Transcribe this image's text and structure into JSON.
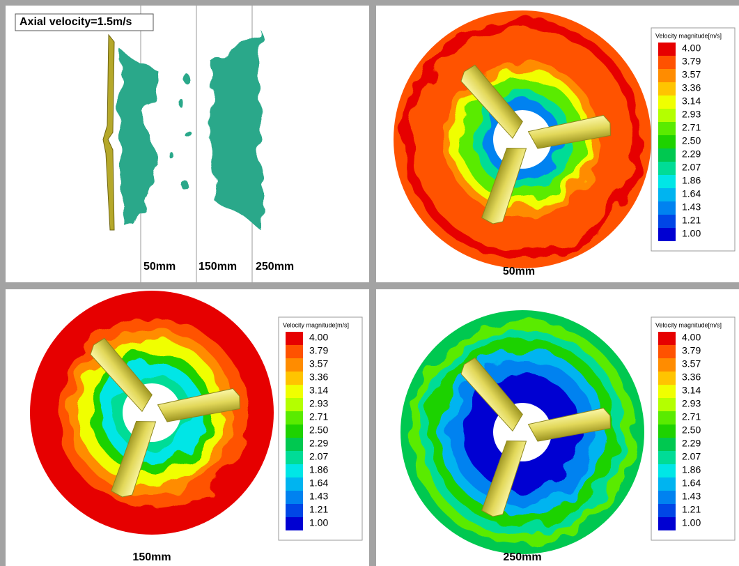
{
  "panels": [
    {
      "title": "Axial velocity=1.5m/s",
      "planes": [
        "50mm",
        "150mm",
        "250mm"
      ]
    },
    {
      "caption": "50mm",
      "legend": {
        "title": "Velocity magnitude[m/s]",
        "levels": [
          "4.00",
          "3.79",
          "3.57",
          "3.36",
          "3.14",
          "2.93",
          "2.71",
          "2.50",
          "2.29",
          "2.07",
          "1.86",
          "1.64",
          "1.43",
          "1.21",
          "1.00"
        ]
      }
    },
    {
      "caption": "150mm",
      "legend": {
        "title": "Velocity magnitude[m/s]",
        "levels": [
          "4.00",
          "3.79",
          "3.57",
          "3.36",
          "3.14",
          "2.93",
          "2.71",
          "2.50",
          "2.29",
          "2.07",
          "1.86",
          "1.64",
          "1.43",
          "1.21",
          "1.00"
        ]
      }
    },
    {
      "caption": "250mm",
      "legend": {
        "title": "Velocity magnitude[m/s]",
        "levels": [
          "4.00",
          "3.79",
          "3.57",
          "3.36",
          "3.14",
          "2.93",
          "2.71",
          "2.50",
          "2.29",
          "2.07",
          "1.86",
          "1.64",
          "1.43",
          "1.21",
          "1.00"
        ]
      }
    }
  ]
}
